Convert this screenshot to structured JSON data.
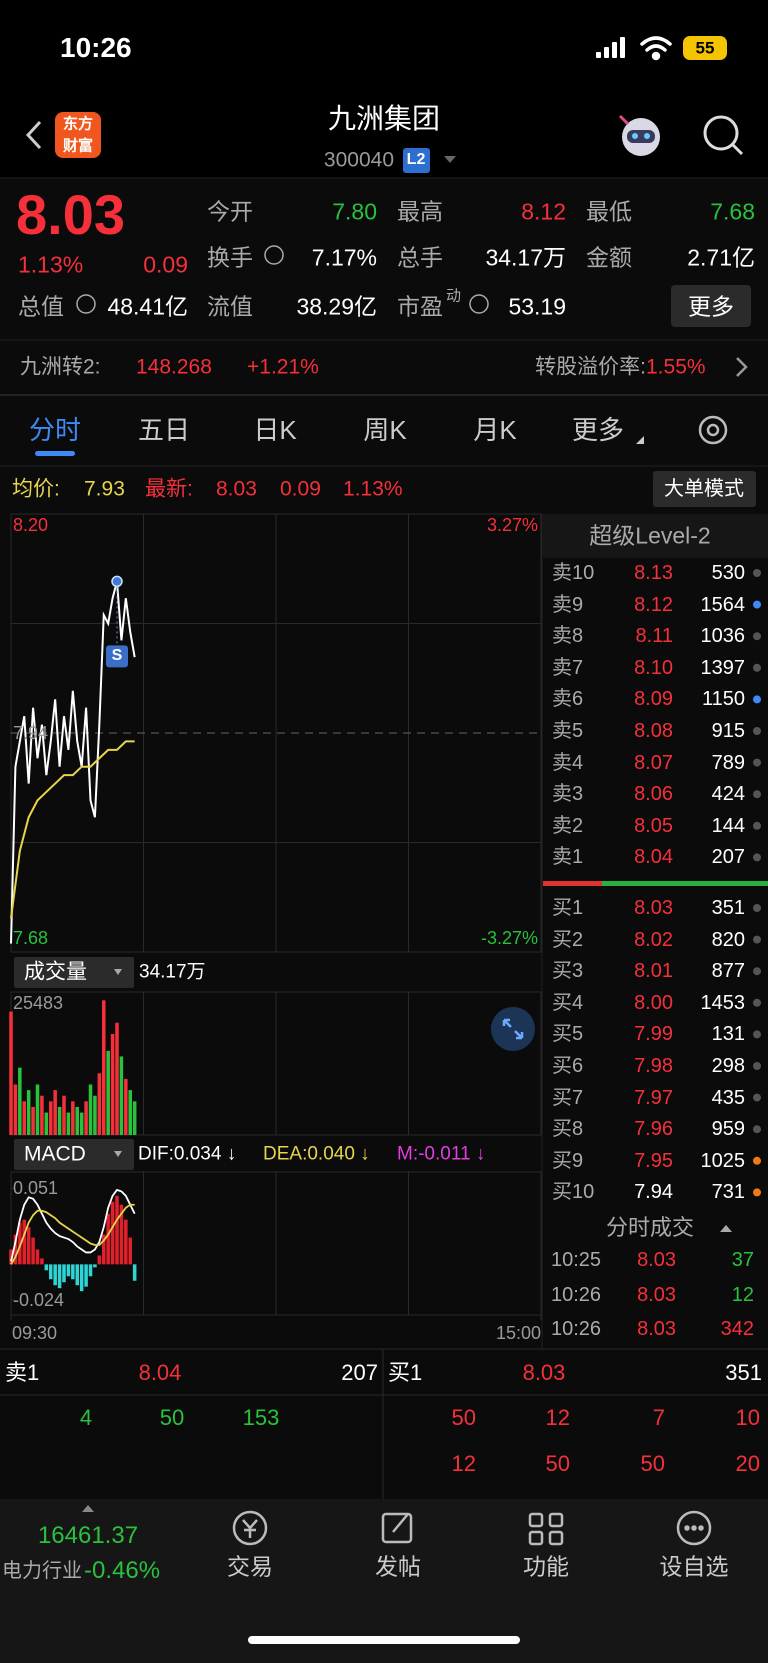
{
  "status_bar": {
    "time": "10:26",
    "battery": "55"
  },
  "header": {
    "title": "九洲集团",
    "code": "300040",
    "level": "L2",
    "logo": [
      "东方",
      "财富"
    ]
  },
  "quote": {
    "price": "8.03",
    "change_pct": "1.13%",
    "change": "0.09",
    "valuation": {
      "label": "总值",
      "value": "48.41亿"
    },
    "fields": [
      {
        "label": "今开",
        "value": "7.80",
        "color": "#29c13d"
      },
      {
        "label": "最高",
        "value": "8.12",
        "color": "#f5303a"
      },
      {
        "label": "最低",
        "value": "7.68",
        "color": "#29c13d"
      },
      {
        "label": "换手",
        "value": "7.17%",
        "color": "#ffffff"
      },
      {
        "label": "总手",
        "value": "34.17万",
        "color": "#ffffff"
      },
      {
        "label": "金额",
        "value": "2.71亿",
        "color": "#ffffff"
      },
      {
        "label": "流值",
        "value": "38.29亿",
        "color": "#ffffff"
      },
      {
        "label": "市盈",
        "value": "53.19",
        "color": "#ffffff"
      }
    ],
    "pe_suffix": "动",
    "more": "更多"
  },
  "bond": {
    "name": "九洲转2:",
    "price": "148.268",
    "change": "+1.21%",
    "premium_label": "转股溢价率:",
    "premium": "1.55%"
  },
  "tabs": [
    "分时",
    "五日",
    "日K",
    "周K",
    "月K",
    "更多"
  ],
  "chart_header": {
    "avg_label": "均价:",
    "avg": "7.93",
    "latest_label": "最新:",
    "latest": "8.03",
    "change": "0.09",
    "change_pct": "1.13%",
    "big_order": "大单模式"
  },
  "intraday_chart": {
    "type": "line",
    "xlim": [
      0,
      240
    ],
    "xticks": [
      {
        "value": 0,
        "label": "09:30"
      },
      {
        "value": 240,
        "label": "15:00"
      }
    ],
    "ylim": [
      7.68,
      8.2
    ],
    "yticks": [
      {
        "value": 8.2,
        "label": "8.20"
      },
      {
        "value": 7.94,
        "label": "7.94"
      },
      {
        "value": 7.68,
        "label": "7.68"
      }
    ],
    "y2lim": [
      -3.27,
      3.27
    ],
    "y2ticks": [
      {
        "value": 3.27,
        "label": "3.27%"
      },
      {
        "value": -3.27,
        "label": "-3.27%"
      }
    ],
    "x": [
      0,
      2,
      4,
      6,
      8,
      10,
      12,
      14,
      16,
      18,
      20,
      22,
      24,
      26,
      28,
      30,
      32,
      34,
      36,
      38,
      40,
      42,
      44,
      46,
      48,
      50,
      52,
      54,
      56
    ],
    "series": [
      {
        "color": "#ffffff",
        "values": [
          7.69,
          7.9,
          7.93,
          7.96,
          7.88,
          7.97,
          7.91,
          7.95,
          7.89,
          7.93,
          7.98,
          7.9,
          7.96,
          7.92,
          7.99,
          7.93,
          7.9,
          7.97,
          7.86,
          7.84,
          7.95,
          8.08,
          8.07,
          8.1,
          8.12,
          8.05,
          8.1,
          8.06,
          8.03
        ]
      },
      {
        "color": "#e8d44d",
        "x": [
          0,
          4,
          8,
          12,
          16,
          20,
          24,
          28,
          32,
          36,
          40,
          44,
          48,
          52,
          56
        ],
        "values": [
          7.72,
          7.8,
          7.84,
          7.86,
          7.87,
          7.88,
          7.89,
          7.89,
          7.9,
          7.9,
          7.91,
          7.92,
          7.92,
          7.93,
          7.93
        ]
      }
    ],
    "signal": {
      "label": "S",
      "x": 48,
      "value": 8.12
    }
  },
  "volume_chart": {
    "type": "bar",
    "label": "成交量",
    "total": "34.17万",
    "ylim": [
      0,
      25483
    ],
    "yticks": [
      25483
    ],
    "values": [
      22000,
      9000,
      12000,
      6000,
      8000,
      5000,
      9000,
      7000,
      4000,
      6000,
      8000,
      5000,
      7000,
      4000,
      6000,
      5000,
      4000,
      6000,
      9000,
      7000,
      11000,
      24000,
      15000,
      18000,
      20000,
      14000,
      10000,
      8000,
      6000
    ],
    "colors": [
      "#f5303a",
      "#f5303a",
      "#29c13d",
      "#f5303a",
      "#29c13d",
      "#f5303a",
      "#29c13d",
      "#f5303a",
      "#29c13d",
      "#f5303a",
      "#f5303a",
      "#29c13d",
      "#f5303a",
      "#29c13d",
      "#f5303a",
      "#29c13d",
      "#29c13d",
      "#f5303a",
      "#29c13d",
      "#29c13d",
      "#f5303a",
      "#f5303a",
      "#29c13d",
      "#f5303a",
      "#f5303a",
      "#29c13d",
      "#f5303a",
      "#29c13d",
      "#29c13d"
    ]
  },
  "macd_chart": {
    "type": "bar",
    "label": "MACD",
    "indicators": [
      "DIF:0.034 ↓",
      "DEA:0.040 ↓",
      "M:-0.011 ↓"
    ],
    "indicator_colors": [
      "#ffffff",
      "#e8d44d",
      "#e040e0"
    ],
    "ylim": [
      -0.034,
      0.062
    ],
    "yticks": [
      0.051,
      -0.024
    ],
    "histogram": [
      0.01,
      0.02,
      0.028,
      0.03,
      0.025,
      0.018,
      0.01,
      0.004,
      -0.004,
      -0.01,
      -0.014,
      -0.016,
      -0.012,
      -0.008,
      -0.01,
      -0.014,
      -0.018,
      -0.015,
      -0.008,
      -0.002,
      0.006,
      0.02,
      0.034,
      0.042,
      0.046,
      0.04,
      0.03,
      0.018,
      -0.011
    ],
    "dif": [
      0.002,
      0.015,
      0.03,
      0.04,
      0.045,
      0.044,
      0.04,
      0.034,
      0.028,
      0.024,
      0.021,
      0.019,
      0.018,
      0.017,
      0.015,
      0.012,
      0.01,
      0.008,
      0.008,
      0.01,
      0.015,
      0.025,
      0.038,
      0.046,
      0.05,
      0.049,
      0.046,
      0.04,
      0.034
    ],
    "dea": [
      0.0,
      0.005,
      0.012,
      0.02,
      0.028,
      0.033,
      0.036,
      0.036,
      0.035,
      0.033,
      0.031,
      0.028,
      0.026,
      0.024,
      0.022,
      0.02,
      0.018,
      0.016,
      0.014,
      0.013,
      0.013,
      0.016,
      0.02,
      0.025,
      0.03,
      0.034,
      0.038,
      0.04,
      0.04
    ],
    "dif_color": "#ffffff",
    "dea_color": "#e8d44d"
  },
  "order_book": {
    "title": "超级Level-2",
    "sell": [
      {
        "label": "卖10",
        "price": "8.13",
        "volume": "530",
        "price_color": "#f5303a",
        "dot": "#555555"
      },
      {
        "label": "卖9",
        "price": "8.12",
        "volume": "1564",
        "price_color": "#f5303a",
        "dot": "#3d8af7"
      },
      {
        "label": "卖8",
        "price": "8.11",
        "volume": "1036",
        "price_color": "#f5303a",
        "dot": "#555555"
      },
      {
        "label": "卖7",
        "price": "8.10",
        "volume": "1397",
        "price_color": "#f5303a",
        "dot": "#555555"
      },
      {
        "label": "卖6",
        "price": "8.09",
        "volume": "1150",
        "price_color": "#f5303a",
        "dot": "#3d8af7"
      },
      {
        "label": "卖5",
        "price": "8.08",
        "volume": "915",
        "price_color": "#f5303a",
        "dot": "#555555"
      },
      {
        "label": "卖4",
        "price": "8.07",
        "volume": "789",
        "price_color": "#f5303a",
        "dot": "#555555"
      },
      {
        "label": "卖3",
        "price": "8.06",
        "volume": "424",
        "price_color": "#f5303a",
        "dot": "#555555"
      },
      {
        "label": "卖2",
        "price": "8.05",
        "volume": "144",
        "price_color": "#f5303a",
        "dot": "#555555"
      },
      {
        "label": "卖1",
        "price": "8.04",
        "volume": "207",
        "price_color": "#f5303a",
        "dot": "#555555"
      }
    ],
    "buy": [
      {
        "label": "买1",
        "price": "8.03",
        "volume": "351",
        "price_color": "#f5303a",
        "dot": "#555555"
      },
      {
        "label": "买2",
        "price": "8.02",
        "volume": "820",
        "price_color": "#f5303a",
        "dot": "#555555"
      },
      {
        "label": "买3",
        "price": "8.01",
        "volume": "877",
        "price_color": "#f5303a",
        "dot": "#555555"
      },
      {
        "label": "买4",
        "price": "8.00",
        "volume": "1453",
        "price_color": "#f5303a",
        "dot": "#555555"
      },
      {
        "label": "买5",
        "price": "7.99",
        "volume": "131",
        "price_color": "#f5303a",
        "dot": "#555555"
      },
      {
        "label": "买6",
        "price": "7.98",
        "volume": "298",
        "price_color": "#f5303a",
        "dot": "#555555"
      },
      {
        "label": "买7",
        "price": "7.97",
        "volume": "435",
        "price_color": "#f5303a",
        "dot": "#555555"
      },
      {
        "label": "买8",
        "price": "7.96",
        "volume": "959",
        "price_color": "#f5303a",
        "dot": "#555555"
      },
      {
        "label": "买9",
        "price": "7.95",
        "volume": "1025",
        "price_color": "#f5303a",
        "dot": "#f07a1a"
      },
      {
        "label": "买10",
        "price": "7.94",
        "volume": "731",
        "price_color": "#ffffff",
        "dot": "#f07a1a"
      }
    ],
    "trades_title": "分时成交",
    "trades": [
      {
        "time": "10:25",
        "price": "8.03",
        "volume": "37",
        "color": "#29c13d"
      },
      {
        "time": "10:26",
        "price": "8.03",
        "volume": "12",
        "color": "#29c13d"
      },
      {
        "time": "10:26",
        "price": "8.03",
        "volume": "342",
        "color": "#f5303a"
      }
    ]
  },
  "depth": {
    "sell1": {
      "label": "卖1",
      "price": "8.04",
      "volume": "207"
    },
    "buy1": {
      "label": "买1",
      "price": "8.03",
      "volume": "351"
    },
    "sell_orders": [
      "4",
      "50",
      "153"
    ],
    "buy_orders": [
      [
        "50",
        "12",
        "7",
        "10"
      ],
      [
        "12",
        "50",
        "50",
        "20"
      ]
    ]
  },
  "nav": {
    "index": "16461.37",
    "industry": "电力行业",
    "industry_change": "-0.46%",
    "items": [
      "交易",
      "发帖",
      "功能",
      "设自选"
    ]
  }
}
